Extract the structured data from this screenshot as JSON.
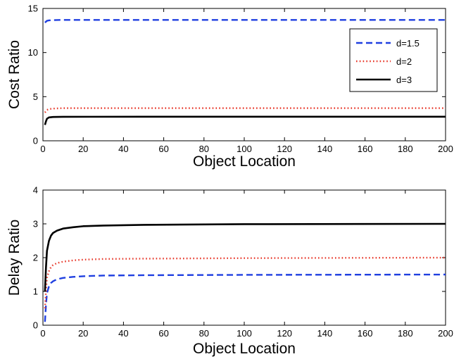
{
  "colors": {
    "d15": "#1f3fe0",
    "d2": "#e8392b",
    "d3": "#000000"
  },
  "chart_data": [
    {
      "type": "line",
      "xlabel": "Object Location",
      "ylabel": "Cost Ratio",
      "xlim": [
        0,
        200
      ],
      "ylim": [
        0,
        15
      ],
      "xticks": [
        0,
        20,
        40,
        60,
        80,
        100,
        120,
        140,
        160,
        180,
        200
      ],
      "yticks": [
        0,
        5,
        10,
        15
      ],
      "grid": false,
      "legend": "top-right",
      "series": [
        {
          "name": "d=1.5",
          "style": "dashed",
          "color": "#1f3fe0",
          "x": [
            1,
            2,
            3,
            5,
            10,
            50,
            100,
            200
          ],
          "y": [
            13.4,
            13.6,
            13.65,
            13.68,
            13.7,
            13.7,
            13.7,
            13.7
          ]
        },
        {
          "name": "d=2",
          "style": "dotted",
          "color": "#e8392b",
          "x": [
            1,
            2,
            3,
            5,
            10,
            50,
            100,
            200
          ],
          "y": [
            3.2,
            3.5,
            3.6,
            3.65,
            3.7,
            3.7,
            3.7,
            3.7
          ]
        },
        {
          "name": "d=3",
          "style": "solid",
          "color": "#000000",
          "x": [
            1,
            1.5,
            2,
            3,
            5,
            10,
            50,
            100,
            200
          ],
          "y": [
            1.8,
            2.2,
            2.5,
            2.65,
            2.7,
            2.72,
            2.73,
            2.73,
            2.73
          ]
        }
      ]
    },
    {
      "type": "line",
      "xlabel": "Object Location",
      "ylabel": "Delay Ratio",
      "xlim": [
        0,
        200
      ],
      "ylim": [
        0,
        4
      ],
      "xticks": [
        0,
        20,
        40,
        60,
        80,
        100,
        120,
        140,
        160,
        180,
        200
      ],
      "yticks": [
        0,
        1,
        2,
        3,
        4
      ],
      "grid": false,
      "series": [
        {
          "name": "d=1.5",
          "style": "dashed",
          "color": "#1f3fe0",
          "x": [
            1,
            1.5,
            2,
            3,
            4,
            5,
            7,
            10,
            15,
            20,
            30,
            50,
            100,
            200
          ],
          "y": [
            0.1,
            0.6,
            0.95,
            1.15,
            1.25,
            1.3,
            1.36,
            1.4,
            1.43,
            1.45,
            1.47,
            1.48,
            1.49,
            1.5
          ]
        },
        {
          "name": "d=2",
          "style": "dotted",
          "color": "#e8392b",
          "x": [
            1,
            1.5,
            2,
            3,
            4,
            5,
            7,
            10,
            15,
            20,
            30,
            50,
            100,
            200
          ],
          "y": [
            0.5,
            1.0,
            1.4,
            1.6,
            1.72,
            1.78,
            1.84,
            1.88,
            1.92,
            1.94,
            1.96,
            1.97,
            1.985,
            2.0
          ]
        },
        {
          "name": "d=3",
          "style": "solid",
          "color": "#000000",
          "x": [
            1,
            1.5,
            2,
            3,
            4,
            5,
            7,
            10,
            15,
            20,
            30,
            50,
            100,
            200
          ],
          "y": [
            1.0,
            1.7,
            2.2,
            2.5,
            2.65,
            2.73,
            2.8,
            2.86,
            2.9,
            2.93,
            2.95,
            2.97,
            2.99,
            3.0
          ]
        }
      ]
    }
  ]
}
